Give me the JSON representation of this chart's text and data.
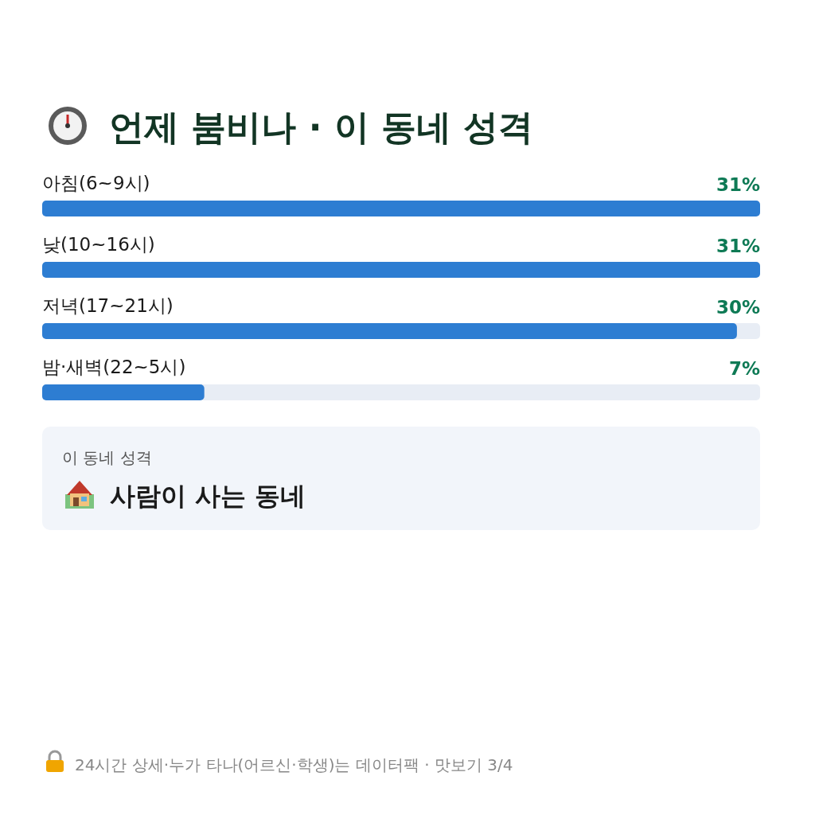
{
  "chart_data": {
    "type": "bar",
    "orientation": "horizontal",
    "title": "언제 붐비나 · 이 동네 성격",
    "categories": [
      "아침(6~9시)",
      "낮(10~16시)",
      "저녁(17~21시)",
      "밤·새벽(22~5시)"
    ],
    "values": [
      31,
      31,
      30,
      7
    ],
    "value_labels": [
      "31%",
      "31%",
      "30%",
      "7%"
    ],
    "color": "#2d7dd2",
    "annotations": [
      "이 동네 성격",
      "사람이 사는 동네",
      "24시간 상세·누가 타나(어르신·학생)는 데이터팩 · 맛보기 3/4"
    ]
  }
}
